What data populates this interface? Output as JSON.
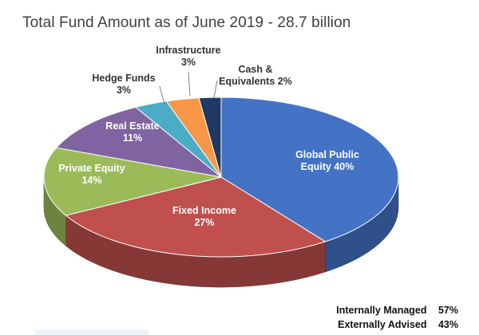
{
  "chart_data": {
    "type": "pie",
    "title": "Total Fund Amount as of June 2019 - 28.7 billion",
    "slices": [
      {
        "name": "Global Public Equity",
        "value": 40,
        "label_lines": [
          "Global Public",
          "Equity 40%"
        ],
        "color": "#4472c4"
      },
      {
        "name": "Fixed Income",
        "value": 27,
        "label_lines": [
          "Fixed Income",
          "27%"
        ],
        "color": "#c0504d"
      },
      {
        "name": "Private Equity",
        "value": 14,
        "label_lines": [
          "Private Equity",
          "14%"
        ],
        "color": "#9bbb59"
      },
      {
        "name": "Real Estate",
        "value": 11,
        "label_lines": [
          "Real Estate",
          "11%"
        ],
        "color": "#8064a2"
      },
      {
        "name": "Hedge Funds",
        "value": 3,
        "label_lines": [
          "Hedge Funds",
          "3%"
        ],
        "color": "#4bacc6"
      },
      {
        "name": "Infrastructure",
        "value": 3,
        "label_lines": [
          "Infrastructure",
          "3%"
        ],
        "color": "#f79646"
      },
      {
        "name": "Cash & Equivalents",
        "value": 2,
        "label_lines": [
          "Cash &",
          "Equivalents 2%"
        ],
        "color": "#1f3864"
      }
    ],
    "label_colors": {
      "inside": "#ffffff",
      "outside": "#333333"
    }
  },
  "summary": {
    "internal": {
      "label": "Internally Managed",
      "pct": "57%"
    },
    "external": {
      "label": "Externally Advised",
      "pct": "43%"
    }
  }
}
